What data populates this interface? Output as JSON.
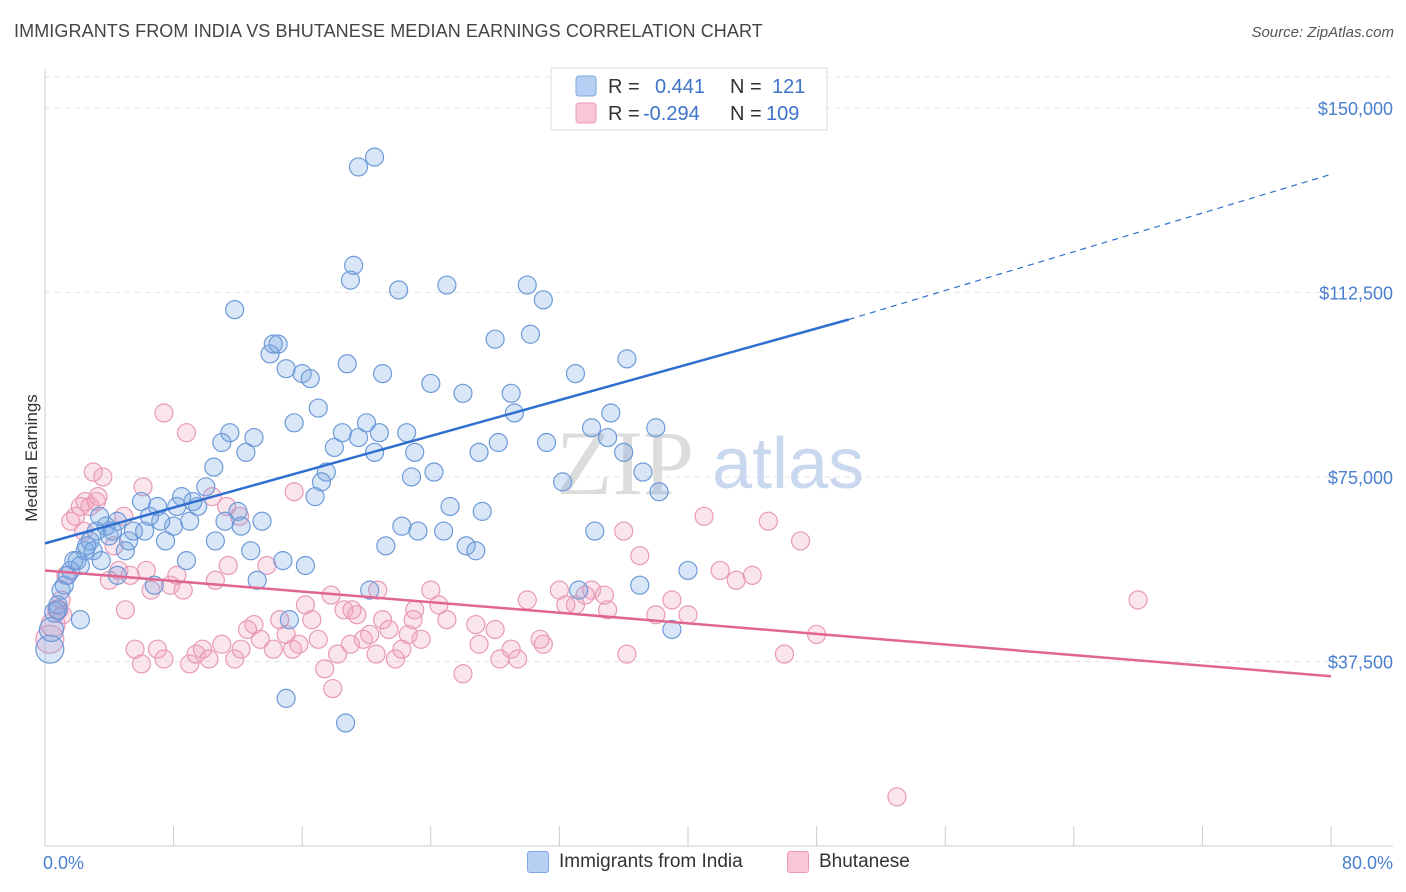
{
  "title": "IMMIGRANTS FROM INDIA VS BHUTANESE MEDIAN EARNINGS CORRELATION CHART",
  "source": "Source: ZipAtlas.com",
  "watermark": {
    "zip": "ZIP",
    "atlas": "atlas"
  },
  "colors": {
    "india": "#5a8fd6",
    "india_line": "#2f6fcf",
    "bhutanese": "#e88aaa",
    "bhutanese_line": "#e0668f",
    "tick": "#4a7fd0"
  },
  "legend": {
    "india": {
      "r_label": "R =",
      "r_value": "0.441",
      "n_label": "N =",
      "n_value": "121"
    },
    "bhutanese": {
      "r_label": "R =",
      "r_value": "-0.294",
      "n_label": "N =",
      "n_value": "109"
    }
  },
  "bottom_legend": {
    "india": "Immigrants from India",
    "bhutanese": "Bhutanese"
  },
  "chart_data": {
    "type": "scatter",
    "title": "IMMIGRANTS FROM INDIA VS BHUTANESE MEDIAN EARNINGS CORRELATION CHART",
    "xlabel": "",
    "ylabel": "Median Earnings",
    "xlim": [
      0,
      80
    ],
    "ylim": [
      0,
      157500
    ],
    "x_tick_labels": [
      "0.0%",
      "80.0%"
    ],
    "y_ticks": [
      37500,
      75000,
      112500,
      150000
    ],
    "y_tick_labels": [
      "$37,500",
      "$75,000",
      "$112,500",
      "$150,000"
    ],
    "grid": true,
    "legend_position": "top-center",
    "series": [
      {
        "name": "Immigrants from India",
        "trend": {
          "x": [
            0,
            50
          ],
          "y": [
            61500,
            107000
          ],
          "dashed_to": [
            80,
            136500
          ]
        },
        "points": [
          [
            0.3,
            40000,
            14
          ],
          [
            0.4,
            44000,
            12
          ],
          [
            0.6,
            47500,
            10
          ],
          [
            0.8,
            48000,
            9
          ],
          [
            1.2,
            53000,
            9
          ],
          [
            1.4,
            55000,
            9
          ],
          [
            1.6,
            56000,
            9
          ],
          [
            2,
            58000,
            9
          ],
          [
            2.2,
            57000,
            9
          ],
          [
            2.5,
            60000,
            9
          ],
          [
            2.8,
            62000,
            9
          ],
          [
            3,
            60000,
            9
          ],
          [
            3.2,
            64000,
            9
          ],
          [
            3.5,
            58000,
            9
          ],
          [
            3.8,
            65000,
            9
          ],
          [
            4,
            63000,
            9
          ],
          [
            4.5,
            66000,
            9
          ],
          [
            5,
            60000,
            9
          ],
          [
            5.5,
            64000,
            9
          ],
          [
            6,
            70000,
            9
          ],
          [
            6.5,
            67000,
            9
          ],
          [
            7,
            69000,
            9
          ],
          [
            7.5,
            62000,
            9
          ],
          [
            8,
            65000,
            9
          ],
          [
            8.5,
            71000,
            9
          ],
          [
            9,
            66000,
            9
          ],
          [
            9.5,
            69000,
            9
          ],
          [
            10,
            73000,
            9
          ],
          [
            10.5,
            77000,
            9
          ],
          [
            11,
            82000,
            9
          ],
          [
            11.5,
            84000,
            9
          ],
          [
            12,
            68000,
            9
          ],
          [
            12.5,
            80000,
            9
          ],
          [
            13,
            83000,
            9
          ],
          [
            13.5,
            66000,
            9
          ],
          [
            14,
            100000,
            9
          ],
          [
            14.5,
            102000,
            9
          ],
          [
            15,
            97000,
            9
          ],
          [
            15.5,
            86000,
            9
          ],
          [
            16,
            96000,
            9
          ],
          [
            16.5,
            95000,
            9
          ],
          [
            17,
            89000,
            9
          ],
          [
            17.5,
            76000,
            9
          ],
          [
            18,
            81000,
            9
          ],
          [
            18.5,
            84000,
            9
          ],
          [
            19,
            115000,
            9
          ],
          [
            19.5,
            83000,
            9
          ],
          [
            20,
            86000,
            9
          ],
          [
            20.5,
            80000,
            9
          ],
          [
            21,
            96000,
            9
          ],
          [
            22,
            113000,
            9
          ],
          [
            22.5,
            84000,
            9
          ],
          [
            23,
            80000,
            9
          ],
          [
            24,
            94000,
            9
          ],
          [
            25,
            114000,
            9
          ],
          [
            26,
            92000,
            9
          ],
          [
            27,
            80000,
            9
          ],
          [
            28,
            103000,
            9
          ],
          [
            29,
            92000,
            9
          ],
          [
            30,
            114000,
            9
          ],
          [
            31,
            111000,
            9
          ],
          [
            33,
            96000,
            9
          ],
          [
            34,
            85000,
            9
          ],
          [
            35,
            83000,
            9
          ],
          [
            36,
            80000,
            9
          ],
          [
            37,
            53000,
            9
          ],
          [
            38,
            85000,
            9
          ],
          [
            39,
            44000,
            9
          ],
          [
            40,
            56000,
            9
          ],
          [
            1.8,
            58000,
            9
          ],
          [
            2.6,
            61000,
            9
          ],
          [
            3.4,
            67000,
            9
          ],
          [
            4.2,
            64000,
            9
          ],
          [
            5.2,
            62000,
            9
          ],
          [
            6.2,
            64000,
            9
          ],
          [
            7.2,
            66000,
            9
          ],
          [
            8.2,
            69000,
            9
          ],
          [
            9.2,
            70000,
            9
          ],
          [
            11.2,
            66000,
            9
          ],
          [
            12.2,
            65000,
            9
          ],
          [
            13.2,
            54000,
            9
          ],
          [
            14.2,
            102000,
            9
          ],
          [
            15.2,
            46000,
            9
          ],
          [
            16.2,
            57000,
            9
          ],
          [
            17.2,
            74000,
            9
          ],
          [
            19.2,
            118000,
            9
          ],
          [
            20.2,
            52000,
            9
          ],
          [
            21.2,
            61000,
            9
          ],
          [
            22.2,
            65000,
            9
          ],
          [
            23.2,
            64000,
            9
          ],
          [
            24.2,
            76000,
            9
          ],
          [
            25.2,
            69000,
            9
          ],
          [
            26.2,
            61000,
            9
          ],
          [
            27.2,
            68000,
            9
          ],
          [
            28.2,
            82000,
            9
          ],
          [
            29.2,
            88000,
            9
          ],
          [
            30.2,
            104000,
            9
          ],
          [
            31.2,
            82000,
            9
          ],
          [
            32.2,
            74000,
            9
          ],
          [
            33.2,
            52000,
            9
          ],
          [
            34.2,
            64000,
            9
          ],
          [
            35.2,
            88000,
            9
          ],
          [
            36.2,
            99000,
            9
          ],
          [
            37.2,
            76000,
            9
          ],
          [
            38.2,
            72000,
            9
          ],
          [
            19.5,
            138000,
            9
          ],
          [
            20.5,
            140000,
            9
          ],
          [
            15,
            30000,
            9
          ],
          [
            18.7,
            25000,
            9
          ],
          [
            11.8,
            109000,
            9
          ],
          [
            1,
            52000,
            9
          ],
          [
            0.8,
            49000,
            9
          ],
          [
            2.2,
            46000,
            9
          ],
          [
            4.5,
            55000,
            9
          ],
          [
            6.8,
            53000,
            9
          ],
          [
            8.8,
            58000,
            9
          ],
          [
            10.6,
            62000,
            9
          ],
          [
            12.8,
            60000,
            9
          ],
          [
            14.8,
            58000,
            9
          ],
          [
            16.8,
            71000,
            9
          ],
          [
            18.8,
            98000,
            9
          ],
          [
            20.8,
            84000,
            9
          ],
          [
            22.8,
            75000,
            9
          ],
          [
            24.8,
            64000,
            9
          ],
          [
            26.8,
            60000,
            9
          ]
        ]
      },
      {
        "name": "Bhutanese",
        "trend": {
          "x": [
            0,
            80
          ],
          "y": [
            56000,
            34500
          ]
        },
        "points": [
          [
            0.3,
            42000,
            14
          ],
          [
            0.5,
            45000,
            12
          ],
          [
            0.8,
            48000,
            10
          ],
          [
            1,
            50000,
            9
          ],
          [
            1.3,
            55000,
            9
          ],
          [
            1.6,
            66000,
            9
          ],
          [
            1.9,
            67000,
            9
          ],
          [
            2.2,
            69000,
            9
          ],
          [
            2.5,
            70000,
            9
          ],
          [
            2.8,
            69000,
            9
          ],
          [
            3,
            76000,
            9
          ],
          [
            3.3,
            71000,
            9
          ],
          [
            3.6,
            75000,
            9
          ],
          [
            4,
            54000,
            9
          ],
          [
            4.3,
            61000,
            9
          ],
          [
            4.6,
            56000,
            9
          ],
          [
            5,
            48000,
            9
          ],
          [
            5.3,
            55000,
            9
          ],
          [
            5.6,
            40000,
            9
          ],
          [
            6,
            37000,
            9
          ],
          [
            6.3,
            56000,
            9
          ],
          [
            6.6,
            52000,
            9
          ],
          [
            7,
            40000,
            9
          ],
          [
            7.4,
            38000,
            9
          ],
          [
            7.8,
            53000,
            9
          ],
          [
            8.2,
            55000,
            9
          ],
          [
            8.6,
            52000,
            9
          ],
          [
            9,
            37000,
            9
          ],
          [
            9.4,
            39000,
            9
          ],
          [
            9.8,
            40000,
            9
          ],
          [
            10.2,
            38000,
            9
          ],
          [
            10.6,
            54000,
            9
          ],
          [
            11,
            41000,
            9
          ],
          [
            11.4,
            57000,
            9
          ],
          [
            11.8,
            38000,
            9
          ],
          [
            12.2,
            40000,
            9
          ],
          [
            12.6,
            44000,
            9
          ],
          [
            13,
            45000,
            9
          ],
          [
            13.4,
            42000,
            9
          ],
          [
            13.8,
            57000,
            9
          ],
          [
            14.2,
            40000,
            9
          ],
          [
            14.6,
            46000,
            9
          ],
          [
            15,
            43000,
            9
          ],
          [
            15.4,
            40000,
            9
          ],
          [
            15.8,
            41000,
            9
          ],
          [
            16.2,
            49000,
            9
          ],
          [
            16.6,
            46000,
            9
          ],
          [
            17,
            42000,
            9
          ],
          [
            17.4,
            36000,
            9
          ],
          [
            17.8,
            51000,
            9
          ],
          [
            18.2,
            39000,
            9
          ],
          [
            18.6,
            48000,
            9
          ],
          [
            19,
            41000,
            9
          ],
          [
            19.4,
            47000,
            9
          ],
          [
            19.8,
            42000,
            9
          ],
          [
            20.2,
            43000,
            9
          ],
          [
            20.6,
            39000,
            9
          ],
          [
            21,
            46000,
            9
          ],
          [
            21.4,
            44000,
            9
          ],
          [
            21.8,
            38000,
            9
          ],
          [
            22.2,
            40000,
            9
          ],
          [
            22.6,
            43000,
            9
          ],
          [
            23,
            48000,
            9
          ],
          [
            23.4,
            42000,
            9
          ],
          [
            24,
            52000,
            9
          ],
          [
            25,
            46000,
            9
          ],
          [
            26,
            35000,
            9
          ],
          [
            27,
            41000,
            9
          ],
          [
            28,
            44000,
            9
          ],
          [
            29,
            40000,
            9
          ],
          [
            30,
            50000,
            9
          ],
          [
            31,
            41000,
            9
          ],
          [
            32,
            52000,
            9
          ],
          [
            33,
            49000,
            9
          ],
          [
            34,
            52000,
            9
          ],
          [
            35,
            48000,
            9
          ],
          [
            36,
            64000,
            9
          ],
          [
            37,
            59000,
            9
          ],
          [
            38,
            47000,
            9
          ],
          [
            39,
            50000,
            9
          ],
          [
            40,
            47000,
            9
          ],
          [
            41,
            67000,
            9
          ],
          [
            42,
            56000,
            9
          ],
          [
            43,
            54000,
            9
          ],
          [
            44,
            55000,
            9
          ],
          [
            45,
            66000,
            9
          ],
          [
            46,
            39000,
            9
          ],
          [
            47,
            62000,
            9
          ],
          [
            48,
            43000,
            9
          ],
          [
            68,
            50000,
            9
          ],
          [
            53,
            10000,
            9
          ],
          [
            7.4,
            88000,
            9
          ],
          [
            8.8,
            84000,
            9
          ],
          [
            10.4,
            71000,
            9
          ],
          [
            11.3,
            69000,
            9
          ],
          [
            12.1,
            67000,
            9
          ],
          [
            15.5,
            72000,
            9
          ],
          [
            17.9,
            32000,
            9
          ],
          [
            19.1,
            48000,
            9
          ],
          [
            20.7,
            52000,
            9
          ],
          [
            22.9,
            46000,
            9
          ],
          [
            24.5,
            49000,
            9
          ],
          [
            26.8,
            45000,
            9
          ],
          [
            28.3,
            38000,
            9
          ],
          [
            29.4,
            38000,
            9
          ],
          [
            30.8,
            42000,
            9
          ],
          [
            32.4,
            49000,
            9
          ],
          [
            33.6,
            51000,
            9
          ],
          [
            34.8,
            51000,
            9
          ],
          [
            36.2,
            39000,
            9
          ],
          [
            2.4,
            64000,
            9
          ],
          [
            3.2,
            70000,
            9
          ],
          [
            1.1,
            47000,
            9
          ],
          [
            4.9,
            67000,
            9
          ],
          [
            6.1,
            73000,
            9
          ]
        ]
      }
    ]
  }
}
